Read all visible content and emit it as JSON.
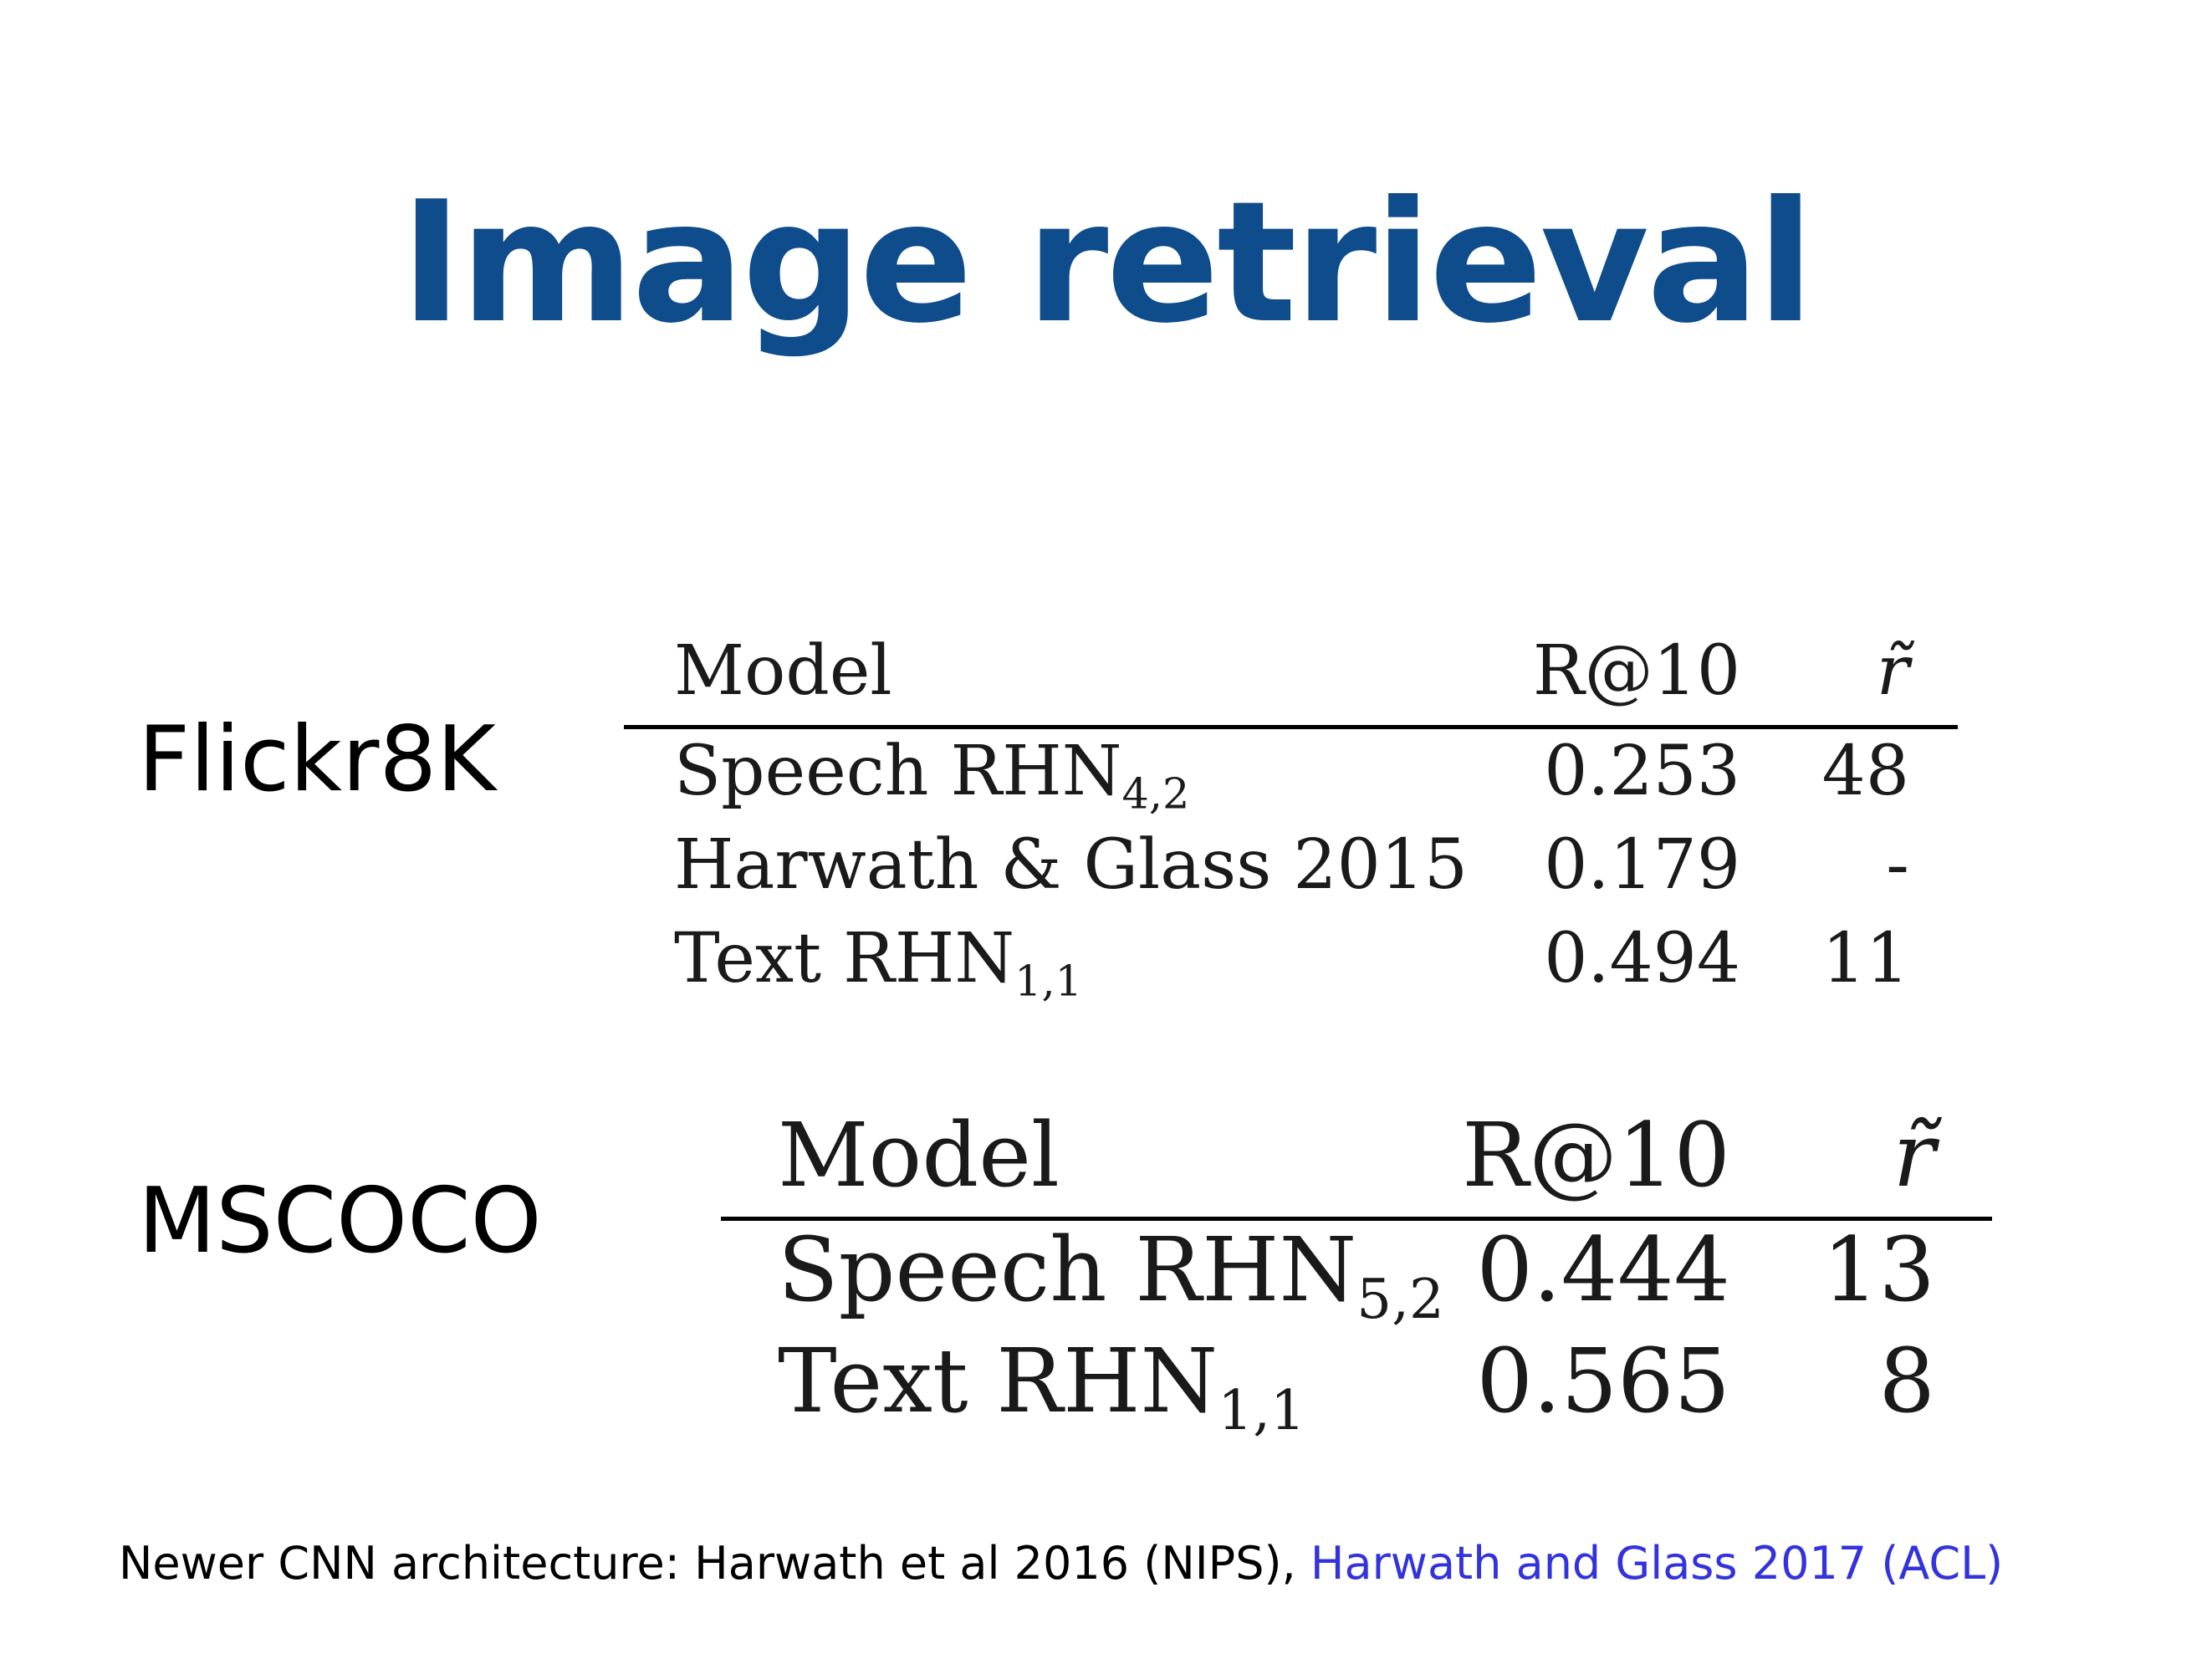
{
  "title": "Image retrieval",
  "colors": {
    "title": "#0e4c8c",
    "link": "#3333dd"
  },
  "flickr8k": {
    "label": "Flickr8K",
    "headers": {
      "model": "Model",
      "r10": "R@10",
      "rtilde": "r̃"
    },
    "rows": [
      {
        "model": "Speech RHN",
        "sub": "4,2",
        "r10": "0.253",
        "rtilde": "48"
      },
      {
        "model": "Harwath & Glass 2015",
        "sub": "",
        "r10": "0.179",
        "rtilde": "-"
      },
      {
        "model": "Text RHN",
        "sub": "1,1",
        "r10": "0.494",
        "rtilde": "11"
      }
    ]
  },
  "mscoco": {
    "label": "MSCOCO",
    "headers": {
      "model": "Model",
      "r10": "R@10",
      "rtilde": "r̃"
    },
    "rows": [
      {
        "model": "Speech RHN",
        "sub": "5,2",
        "r10": "0.444",
        "rtilde": "13"
      },
      {
        "model": "Text RHN",
        "sub": "1,1",
        "r10": "0.565",
        "rtilde": "8"
      }
    ]
  },
  "footnote": {
    "text": "Newer CNN architecture: Harwath et al 2016 (NIPS), ",
    "link_text": "Harwath and Glass 2017 (ACL)"
  }
}
